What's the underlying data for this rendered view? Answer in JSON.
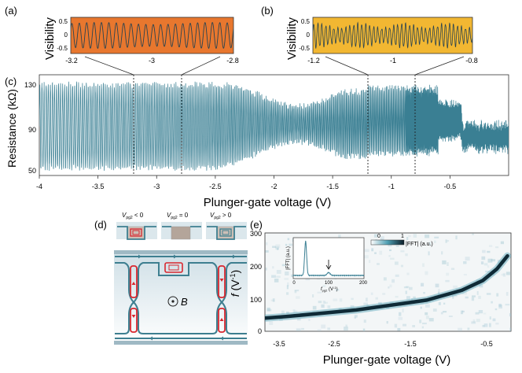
{
  "panels": {
    "a": {
      "tag": "(a)",
      "ylabel": "Visibility",
      "yticks": [
        "0.5",
        "0",
        "-0.5"
      ],
      "xticks": [
        "-3.2",
        "-3",
        "-2.8"
      ],
      "bg": "#e8772e"
    },
    "b": {
      "tag": "(b)",
      "ylabel": "Visibility",
      "yticks": [
        "0.5",
        "0",
        "-0.5"
      ],
      "xticks": [
        "-1.2",
        "-1",
        "-0.8"
      ],
      "bg": "#f2b732"
    },
    "c": {
      "tag": "(c)",
      "ylabel": "Resistance (kΩ)",
      "yticks": [
        "130",
        "90",
        "50"
      ],
      "xticks": [
        "-4",
        "-3.5",
        "-3",
        "-2.5",
        "-2",
        "-1.5",
        "-1",
        "-0.5"
      ],
      "xlabel": "Plunger-gate voltage (V)",
      "trace_color": "#3a7f93"
    },
    "d": {
      "tag": "(d)",
      "states": [
        "V<0",
        "V=0",
        "V>0"
      ],
      "state_text": {
        "neg": {
          "v": "V",
          "sub": "pg2",
          "rel": " < 0"
        },
        "zero": {
          "v": "V",
          "sub": "pg2",
          "rel": " = 0"
        },
        "pos": {
          "v": "V",
          "sub": "pg2",
          "rel": " > 0"
        }
      },
      "field_label": "B",
      "edge_color": "#3e7f90",
      "loop_color": "#d8262e"
    },
    "e": {
      "tag": "(e)",
      "ylabel_main": "f",
      "ylabel_unit": " (V",
      "ylabel_exp": "-1",
      "ylabel_close": ")",
      "yticks": [
        "300",
        "200",
        "100",
        "0"
      ],
      "xticks": [
        "-3.5",
        "-2.5",
        "-1.5",
        "-0.5"
      ],
      "xlabel": "Plunger-gate voltage (V)",
      "colorbar": {
        "min": "0",
        "max": "1",
        "label": "|FFT| (a.u.)"
      },
      "inset": {
        "ylabel": "|FFT| (a.u.)",
        "xticks": [
          "0",
          "100",
          "200"
        ],
        "xlabel_main": "f",
        "xlabel_sub": "pg2",
        "xlabel_unit": " (V",
        "xlabel_exp": "-1",
        "xlabel_close": ")"
      }
    }
  },
  "chart_data": [
    {
      "type": "line",
      "panel": "a",
      "ylabel": "Visibility",
      "xlim": [
        -3.2,
        -2.8
      ],
      "ylim": [
        -0.7,
        0.7
      ],
      "oscillation_count": 22,
      "amplitude": 0.5
    },
    {
      "type": "line",
      "panel": "b",
      "ylabel": "Visibility",
      "xlim": [
        -1.2,
        -0.8
      ],
      "ylim": [
        -0.7,
        0.7
      ],
      "oscillation_count": 40,
      "amplitude": 0.45
    },
    {
      "type": "line",
      "panel": "c",
      "xlabel": "Plunger-gate voltage (V)",
      "ylabel": "Resistance (kΩ)",
      "xlim": [
        -4,
        0
      ],
      "ylim": [
        45,
        137
      ],
      "marked_x": [
        -3.2,
        -2.8,
        -1.2,
        -0.8
      ]
    },
    {
      "type": "heatmap",
      "panel": "e",
      "xlabel": "Plunger-gate voltage (V)",
      "xlim": [
        -3.8,
        -0.3
      ],
      "ylim": [
        0,
        300
      ],
      "ridge": {
        "x": [
          -3.8,
          -3.5,
          -3.0,
          -2.5,
          -2.0,
          -1.5,
          -1.0,
          -0.7,
          -0.5,
          -0.35
        ],
        "f": [
          40,
          45,
          55,
          65,
          80,
          95,
          125,
          155,
          190,
          230
        ]
      },
      "inset": {
        "type": "line",
        "xlim": [
          0,
          200
        ],
        "peak_f": 35,
        "arrow_f": 100
      }
    }
  ]
}
